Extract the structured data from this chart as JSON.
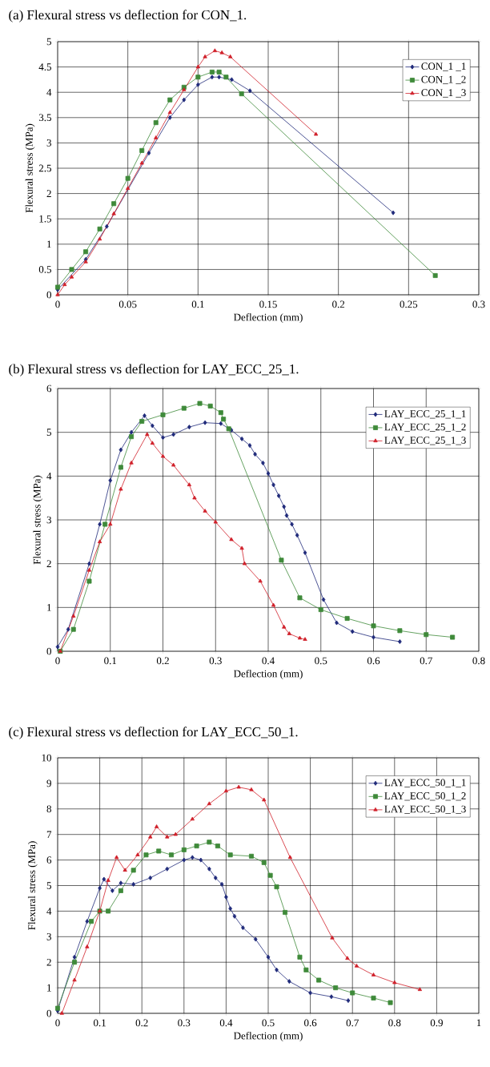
{
  "chart_data": [
    {
      "type": "line",
      "title": "(a) Flexural stress vs deflection for CON_1.",
      "xlabel": "Deflection (mm)",
      "ylabel": "Flexural stress (MPa)",
      "xlim": [
        0,
        0.3
      ],
      "ylim": [
        0,
        5
      ],
      "xticks": [
        0,
        0.05,
        0.1,
        0.15,
        0.2,
        0.25,
        0.3
      ],
      "yticks": [
        0,
        0.5,
        1,
        1.5,
        2,
        2.5,
        3,
        3.5,
        4,
        4.5,
        5
      ],
      "grid": true,
      "legend": "top right",
      "line_style": "solid",
      "series": [
        {
          "name": "CON_1 _1",
          "color": "#1f2a7a",
          "marker": "diamond",
          "x": [
            0,
            0.02,
            0.035,
            0.065,
            0.08,
            0.09,
            0.1,
            0.11,
            0.115,
            0.124,
            0.137,
            0.239
          ],
          "values": [
            0.1,
            0.7,
            1.35,
            2.8,
            3.5,
            3.85,
            4.15,
            4.3,
            4.3,
            4.25,
            4.03,
            1.62
          ]
        },
        {
          "name": "CON_1 _2",
          "color": "#3f8a3a",
          "marker": "square",
          "x": [
            0,
            0.01,
            0.02,
            0.03,
            0.04,
            0.05,
            0.06,
            0.07,
            0.08,
            0.09,
            0.1,
            0.11,
            0.115,
            0.12,
            0.131,
            0.269
          ],
          "values": [
            0.15,
            0.5,
            0.85,
            1.3,
            1.8,
            2.3,
            2.85,
            3.4,
            3.85,
            4.1,
            4.3,
            4.4,
            4.4,
            4.3,
            3.97,
            0.38
          ]
        },
        {
          "name": "CON_1 _3",
          "color": "#d0202a",
          "marker": "triangle",
          "x": [
            0,
            0.005,
            0.01,
            0.02,
            0.03,
            0.04,
            0.05,
            0.06,
            0.07,
            0.08,
            0.09,
            0.1,
            0.105,
            0.112,
            0.117,
            0.123,
            0.184
          ],
          "values": [
            0,
            0.2,
            0.35,
            0.65,
            1.1,
            1.6,
            2.1,
            2.6,
            3.1,
            3.6,
            4.05,
            4.5,
            4.7,
            4.82,
            4.78,
            4.7,
            3.17
          ]
        }
      ]
    },
    {
      "type": "line",
      "title": "(b) Flexural stress vs deflection for LAY_ECC_25_1.",
      "xlabel": "Deflection (mm)",
      "ylabel": "Flexural stress (MPa)",
      "xlim": [
        0,
        0.8
      ],
      "ylim": [
        0,
        6
      ],
      "xticks": [
        0,
        0.1,
        0.2,
        0.3,
        0.4,
        0.5,
        0.6,
        0.7,
        0.8
      ],
      "yticks": [
        0,
        1,
        2,
        3,
        4,
        5,
        6
      ],
      "grid": true,
      "legend": "top right",
      "line_style": "solid",
      "series": [
        {
          "name": "LAY_ECC_25_1_1",
          "color": "#1f2a7a",
          "marker": "diamond",
          "x": [
            0,
            0.02,
            0.06,
            0.08,
            0.1,
            0.12,
            0.14,
            0.165,
            0.18,
            0.2,
            0.22,
            0.25,
            0.28,
            0.31,
            0.33,
            0.35,
            0.365,
            0.375,
            0.39,
            0.4,
            0.41,
            0.42,
            0.43,
            0.435,
            0.445,
            0.455,
            0.47,
            0.505,
            0.53,
            0.56,
            0.6,
            0.65
          ],
          "values": [
            0.1,
            0.5,
            2.0,
            2.9,
            3.9,
            4.6,
            5.0,
            5.38,
            5.15,
            4.88,
            4.95,
            5.12,
            5.22,
            5.2,
            5.05,
            4.85,
            4.7,
            4.5,
            4.3,
            4.06,
            3.8,
            3.55,
            3.3,
            3.1,
            2.9,
            2.65,
            2.25,
            1.18,
            0.65,
            0.45,
            0.32,
            0.22
          ]
        },
        {
          "name": "LAY_ECC_25_1_2",
          "color": "#3f8a3a",
          "marker": "square",
          "x": [
            0.005,
            0.03,
            0.06,
            0.09,
            0.12,
            0.14,
            0.16,
            0.2,
            0.24,
            0.27,
            0.29,
            0.31,
            0.315,
            0.325,
            0.425,
            0.46,
            0.5,
            0.55,
            0.6,
            0.65,
            0.7,
            0.75
          ],
          "values": [
            0,
            0.5,
            1.6,
            2.9,
            4.2,
            4.9,
            5.25,
            5.4,
            5.55,
            5.66,
            5.6,
            5.45,
            5.3,
            5.08,
            2.08,
            1.22,
            0.95,
            0.75,
            0.58,
            0.47,
            0.38,
            0.32
          ]
        },
        {
          "name": "LAY_ECC_25_1_3",
          "color": "#d0202a",
          "marker": "triangle",
          "x": [
            0.005,
            0.03,
            0.06,
            0.08,
            0.1,
            0.12,
            0.14,
            0.17,
            0.18,
            0.2,
            0.22,
            0.25,
            0.26,
            0.28,
            0.3,
            0.33,
            0.35,
            0.355,
            0.385,
            0.41,
            0.43,
            0.44,
            0.46,
            0.47
          ],
          "values": [
            0,
            0.8,
            1.85,
            2.5,
            2.9,
            3.7,
            4.3,
            4.95,
            4.75,
            4.45,
            4.25,
            3.8,
            3.5,
            3.2,
            2.95,
            2.55,
            2.35,
            2.0,
            1.6,
            1.05,
            0.55,
            0.4,
            0.3,
            0.27
          ]
        }
      ]
    },
    {
      "type": "line",
      "title": "(c) Flexural stress vs deflection for LAY_ECC_50_1.",
      "xlabel": "Deflection (mm)",
      "ylabel": "Flexural stress (MPa)",
      "xlim": [
        0,
        1
      ],
      "ylim": [
        0,
        10
      ],
      "xticks": [
        0,
        0.1,
        0.2,
        0.3,
        0.4,
        0.5,
        0.6,
        0.7,
        0.8,
        0.9,
        1
      ],
      "yticks": [
        0,
        1,
        2,
        3,
        4,
        5,
        6,
        7,
        8,
        9,
        10
      ],
      "grid": true,
      "legend": "top right",
      "line_style": "solid",
      "series": [
        {
          "name": "LAY_ECC_50_1_1",
          "color": "#1f2a7a",
          "marker": "diamond",
          "x": [
            0,
            0.04,
            0.07,
            0.1,
            0.11,
            0.13,
            0.15,
            0.18,
            0.22,
            0.26,
            0.3,
            0.32,
            0.34,
            0.36,
            0.375,
            0.39,
            0.4,
            0.41,
            0.42,
            0.44,
            0.47,
            0.5,
            0.52,
            0.55,
            0.6,
            0.65,
            0.69
          ],
          "values": [
            0.1,
            2.2,
            3.6,
            4.9,
            5.25,
            4.8,
            5.1,
            5.05,
            5.3,
            5.65,
            6.0,
            6.1,
            6.0,
            5.65,
            5.3,
            5.05,
            4.55,
            4.1,
            3.8,
            3.35,
            2.9,
            2.2,
            1.7,
            1.25,
            0.8,
            0.65,
            0.5
          ]
        },
        {
          "name": "LAY_ECC_50_1_2",
          "color": "#3f8a3a",
          "marker": "square",
          "x": [
            0,
            0.04,
            0.08,
            0.1,
            0.12,
            0.15,
            0.18,
            0.21,
            0.24,
            0.27,
            0.3,
            0.33,
            0.36,
            0.38,
            0.41,
            0.46,
            0.49,
            0.505,
            0.52,
            0.54,
            0.575,
            0.59,
            0.62,
            0.66,
            0.7,
            0.75,
            0.79
          ],
          "values": [
            0.2,
            2.0,
            3.6,
            4.0,
            4.0,
            4.8,
            5.6,
            6.2,
            6.35,
            6.2,
            6.4,
            6.55,
            6.7,
            6.55,
            6.2,
            6.15,
            5.9,
            5.4,
            4.95,
            3.95,
            2.2,
            1.7,
            1.3,
            1.0,
            0.8,
            0.6,
            0.42
          ]
        },
        {
          "name": "LAY_ECC_50_1_3",
          "color": "#d0202a",
          "marker": "triangle",
          "x": [
            0.01,
            0.04,
            0.07,
            0.1,
            0.12,
            0.14,
            0.16,
            0.19,
            0.22,
            0.235,
            0.26,
            0.28,
            0.32,
            0.36,
            0.4,
            0.43,
            0.46,
            0.49,
            0.552,
            0.652,
            0.688,
            0.71,
            0.75,
            0.8,
            0.86
          ],
          "values": [
            0,
            1.3,
            2.6,
            4.0,
            5.2,
            6.1,
            5.6,
            6.2,
            6.9,
            7.3,
            6.9,
            7.0,
            7.6,
            8.2,
            8.7,
            8.85,
            8.75,
            8.35,
            6.1,
            2.95,
            2.15,
            1.85,
            1.5,
            1.2,
            0.93
          ]
        }
      ]
    }
  ]
}
